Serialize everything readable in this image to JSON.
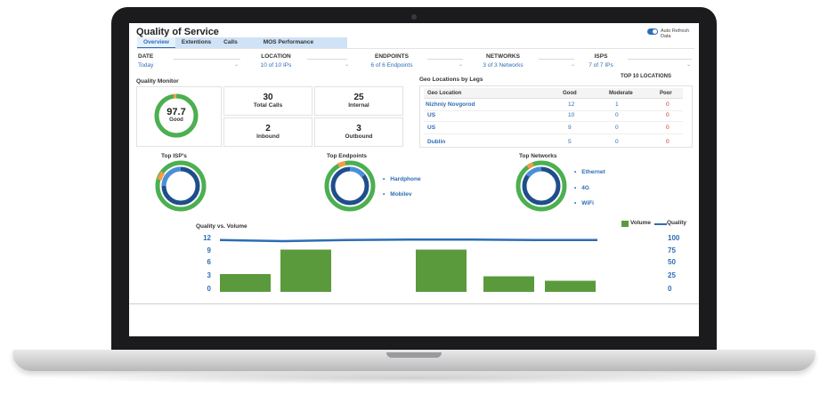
{
  "app": {
    "title": "Quality of Service",
    "auto_refresh_label": "Auto Refresh Data",
    "auto_refresh_on": true
  },
  "tabs": [
    {
      "label": "Overview",
      "active": true
    },
    {
      "label": "Extentions",
      "active": false
    },
    {
      "label": "Calls",
      "active": false
    },
    {
      "label": "MOS Performance",
      "active": false
    }
  ],
  "filters": [
    {
      "label": "DATE",
      "value": "Today"
    },
    {
      "label": "LOCATION",
      "value": "10 of 10 IPs"
    },
    {
      "label": "ENDPOINTS",
      "value": "6 of 6 Endpoints"
    },
    {
      "label": "NETWORKS",
      "value": "3 of 3 Networks"
    },
    {
      "label": "ISPS",
      "value": "7 of 7 IPs"
    }
  ],
  "quality_monitor": {
    "title": "Quality Monitor",
    "score": "97.7",
    "score_label": "Good",
    "score_fraction": 0.977,
    "stats": [
      {
        "value": "30",
        "label": "Total Calls"
      },
      {
        "value": "25",
        "label": "Internal"
      },
      {
        "value": "2",
        "label": "Inbound"
      },
      {
        "value": "3",
        "label": "Outbound"
      }
    ]
  },
  "geo": {
    "title": "Geo Locations by Legs",
    "top_label": "TOP 10 LOCATIONS",
    "headers": {
      "location": "Geo Location",
      "good": "Good",
      "moderate": "Moderate",
      "poor": "Poor"
    },
    "rows": [
      {
        "location": "Nizhniy Novgorod",
        "good": "12",
        "moderate": "1",
        "poor": "0"
      },
      {
        "location": "US",
        "good": "10",
        "moderate": "0",
        "poor": "0"
      },
      {
        "location": "US",
        "good": "9",
        "moderate": "0",
        "poor": "0"
      },
      {
        "location": "Dublin",
        "good": "5",
        "moderate": "0",
        "poor": "0"
      }
    ]
  },
  "donuts": {
    "isps": {
      "title": "Top ISP's"
    },
    "endpoints": {
      "title": "Top Endpoints",
      "legend": [
        "Hardphone",
        "Mobilev"
      ]
    },
    "networks": {
      "title": "Top Networks",
      "legend": [
        "Ethernet",
        "4G",
        "WiFi"
      ]
    }
  },
  "colors": {
    "good": "#4caf50",
    "primary": "#2c6db5",
    "navy": "#1f4e8c",
    "orange": "#f39c45",
    "bar": "#5a9a3c",
    "poor": "#d02b2b"
  },
  "chart_data": {
    "type": "bar",
    "title": "Quality vs. Volume",
    "legend": [
      "Volume",
      "Quality"
    ],
    "y_left_ticks": [
      "12",
      "9",
      "6",
      "3",
      "0"
    ],
    "y_right_ticks": [
      "100",
      "75",
      "50",
      "25",
      "0"
    ],
    "ylim_left": [
      0,
      12
    ],
    "ylim_right": [
      0,
      100
    ],
    "series": [
      {
        "name": "Volume",
        "type": "bar",
        "values": [
          4,
          9.5,
          9.5,
          3.5,
          2.5
        ]
      },
      {
        "name": "Quality",
        "type": "line",
        "values": [
          97,
          95,
          97,
          98,
          98,
          97,
          97
        ]
      }
    ]
  }
}
